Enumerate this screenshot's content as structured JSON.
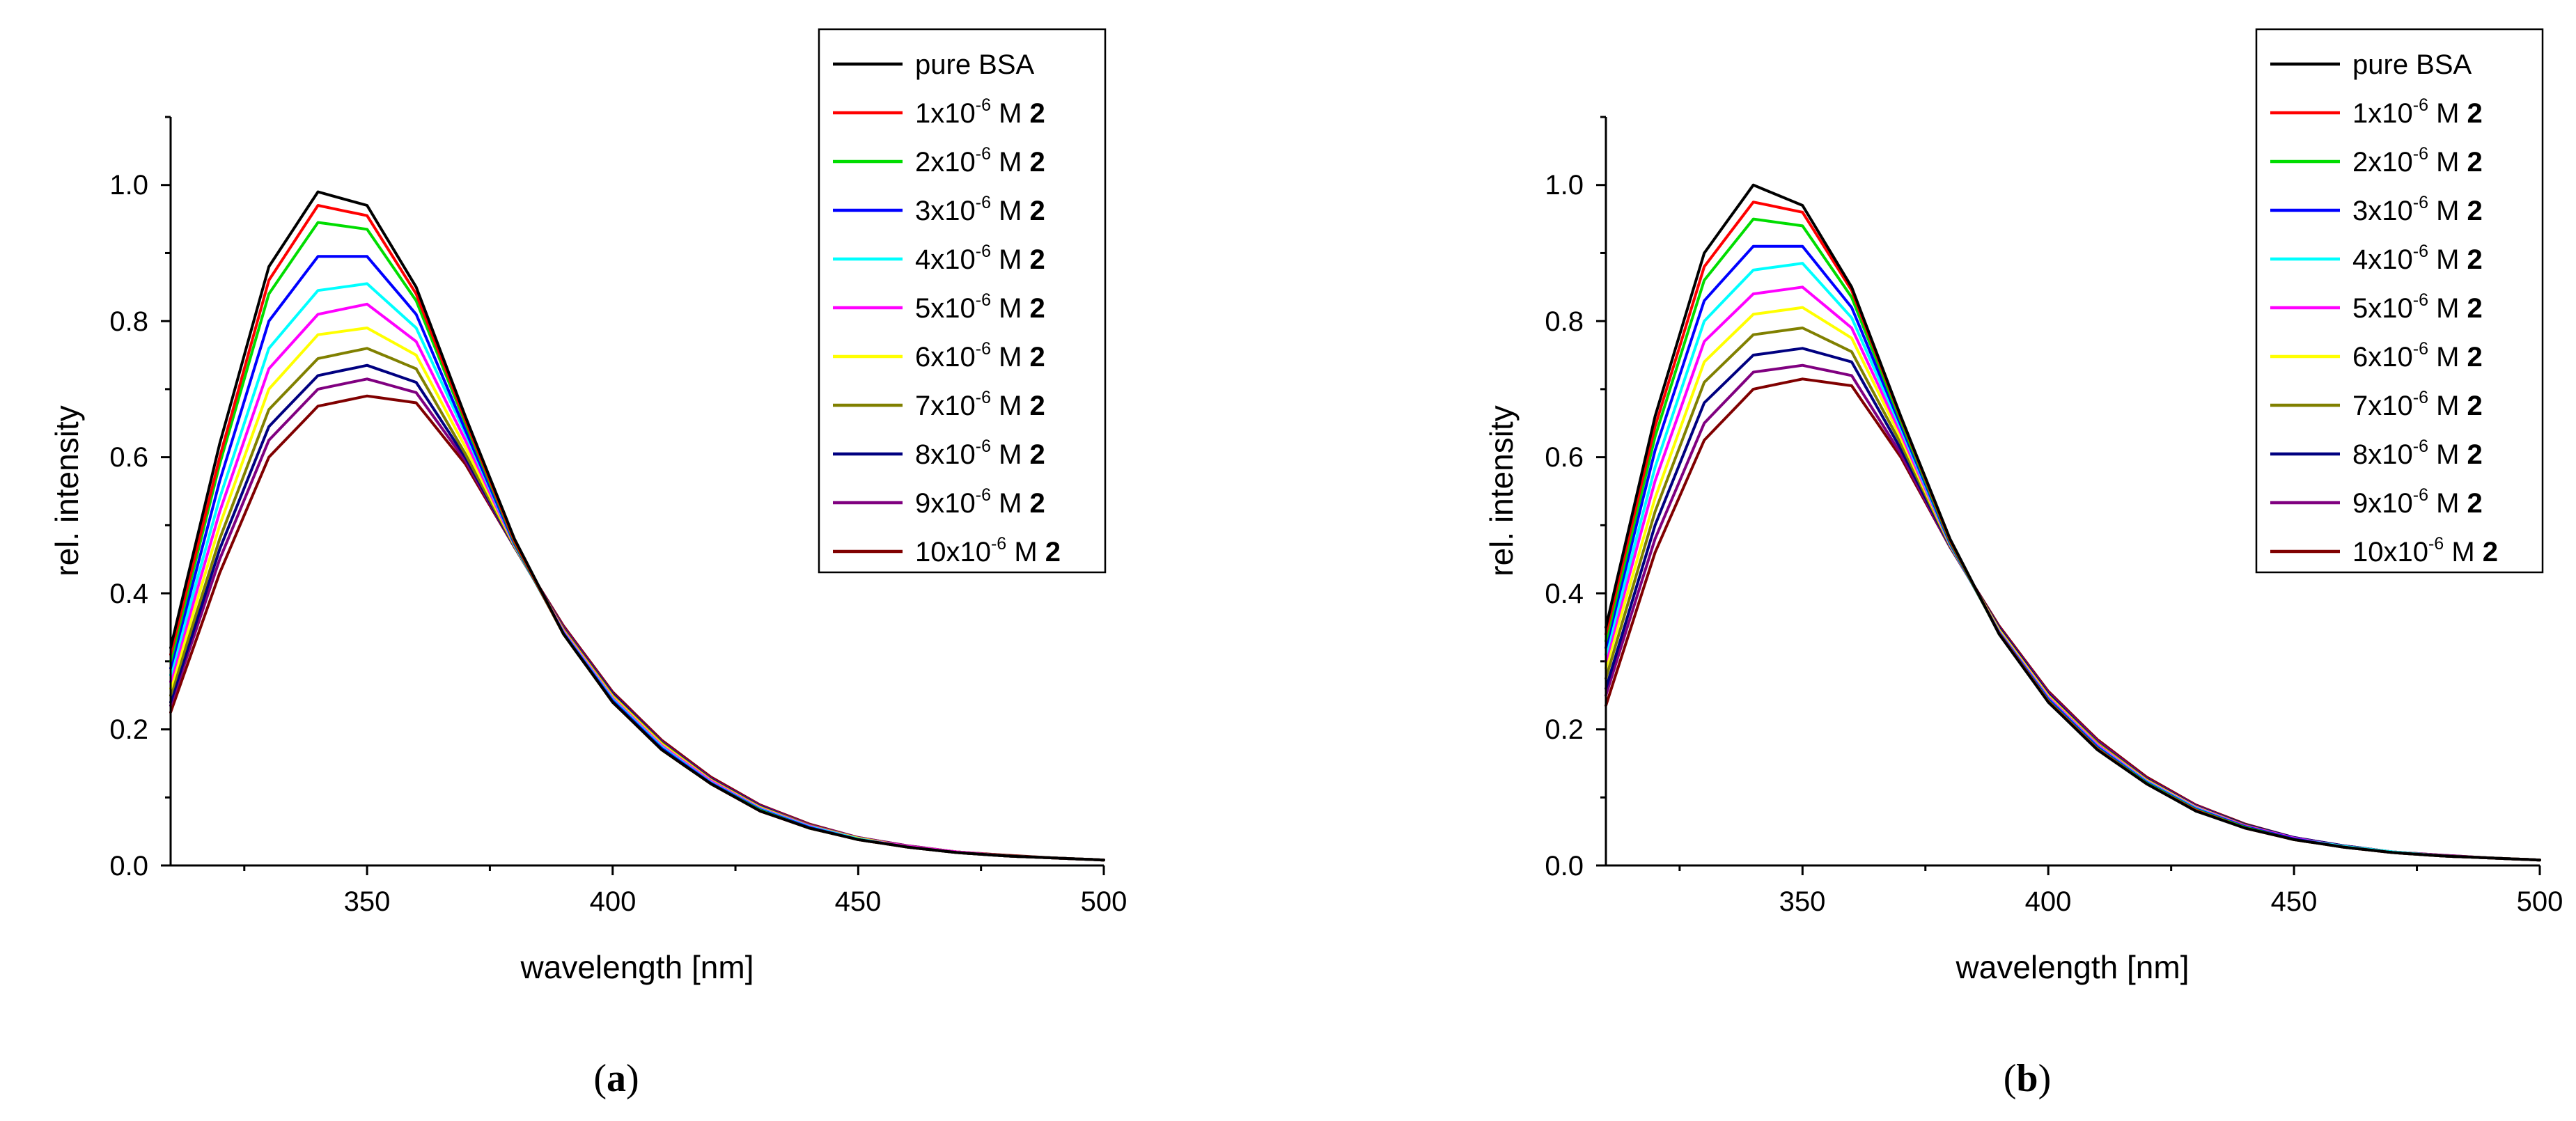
{
  "panels": [
    {
      "id": "a",
      "label_parts": [
        "(",
        "a",
        ")"
      ],
      "chart_data": {
        "type": "line",
        "xlabel": "wavelength [nm]",
        "ylabel": "rel. intensity",
        "xlim": [
          310,
          500
        ],
        "ylim": [
          0,
          1.1
        ],
        "xticks": [
          350,
          400,
          450,
          500
        ],
        "yticks": [
          0.0,
          0.2,
          0.4,
          0.6,
          0.8,
          1.0
        ],
        "xtick_labels": [
          "350",
          "400",
          "450",
          "500"
        ],
        "ytick_labels": [
          "0.0",
          "0.2",
          "0.4",
          "0.6",
          "0.8",
          "1.0"
        ],
        "x": [
          310,
          320,
          330,
          340,
          350,
          360,
          370,
          380,
          390,
          400,
          410,
          420,
          430,
          440,
          450,
          460,
          470,
          480,
          490,
          500
        ],
        "series": [
          {
            "prefix": "",
            "mantissa": "pure BSA",
            "exponent": "",
            "unit": "",
            "compound": "",
            "color": "#000000",
            "values": [
              0.32,
              0.62,
              0.88,
              0.99,
              0.97,
              0.85,
              0.66,
              0.48,
              0.34,
              0.24,
              0.17,
              0.12,
              0.08,
              0.055,
              0.038,
              0.027,
              0.019,
              0.014,
              0.011,
              0.008
            ]
          },
          {
            "prefix": "1x10",
            "mantissa": "",
            "exponent": "-6",
            "unit": " M ",
            "compound": "2",
            "color": "#ff0000",
            "values": [
              0.31,
              0.6,
              0.86,
              0.97,
              0.955,
              0.84,
              0.655,
              0.477,
              0.34,
              0.24,
              0.17,
              0.12,
              0.08,
              0.055,
              0.038,
              0.027,
              0.019,
              0.014,
              0.011,
              0.008
            ]
          },
          {
            "prefix": "2x10",
            "mantissa": "",
            "exponent": "-6",
            "unit": " M ",
            "compound": "2",
            "color": "#00dd00",
            "values": [
              0.3,
              0.59,
              0.84,
              0.945,
              0.935,
              0.83,
              0.65,
              0.475,
              0.34,
              0.24,
              0.17,
              0.12,
              0.081,
              0.055,
              0.038,
              0.027,
              0.019,
              0.014,
              0.011,
              0.008
            ]
          },
          {
            "prefix": "3x10",
            "mantissa": "",
            "exponent": "-6",
            "unit": " M ",
            "compound": "2",
            "color": "#0000ff",
            "values": [
              0.29,
              0.565,
              0.8,
              0.895,
              0.895,
              0.81,
              0.64,
              0.473,
              0.341,
              0.242,
              0.172,
              0.121,
              0.082,
              0.056,
              0.038,
              0.027,
              0.019,
              0.014,
              0.011,
              0.008
            ]
          },
          {
            "prefix": "4x10",
            "mantissa": "",
            "exponent": "-6",
            "unit": " M ",
            "compound": "2",
            "color": "#00ffff",
            "values": [
              0.28,
              0.54,
              0.76,
              0.845,
              0.855,
              0.79,
              0.635,
              0.472,
              0.342,
              0.244,
              0.174,
              0.122,
              0.083,
              0.057,
              0.039,
              0.027,
              0.019,
              0.014,
              0.011,
              0.008
            ]
          },
          {
            "prefix": "5x10",
            "mantissa": "",
            "exponent": "-6",
            "unit": " M ",
            "compound": "2",
            "color": "#ff00ff",
            "values": [
              0.27,
              0.52,
              0.73,
              0.81,
              0.825,
              0.77,
              0.625,
              0.471,
              0.344,
              0.246,
              0.176,
              0.124,
              0.084,
              0.058,
              0.039,
              0.028,
              0.02,
              0.014,
              0.011,
              0.008
            ]
          },
          {
            "prefix": "6x10",
            "mantissa": "",
            "exponent": "-6",
            "unit": " M ",
            "compound": "2",
            "color": "#ffff00",
            "values": [
              0.26,
              0.5,
              0.7,
              0.78,
              0.79,
              0.75,
              0.615,
              0.47,
              0.345,
              0.248,
              0.178,
              0.125,
              0.085,
              0.058,
              0.04,
              0.028,
              0.02,
              0.014,
              0.011,
              0.008
            ]
          },
          {
            "prefix": "7x10",
            "mantissa": "",
            "exponent": "-6",
            "unit": " M ",
            "compound": "2",
            "color": "#808000",
            "values": [
              0.25,
              0.48,
              0.67,
              0.745,
              0.76,
              0.73,
              0.605,
              0.469,
              0.347,
              0.25,
              0.18,
              0.126,
              0.086,
              0.059,
              0.04,
              0.028,
              0.02,
              0.014,
              0.011,
              0.008
            ]
          },
          {
            "prefix": "8x10",
            "mantissa": "",
            "exponent": "-6",
            "unit": " M ",
            "compound": "2",
            "color": "#000080",
            "values": [
              0.24,
              0.465,
              0.645,
              0.72,
              0.735,
              0.71,
              0.6,
              0.468,
              0.348,
              0.252,
              0.181,
              0.127,
              0.087,
              0.059,
              0.04,
              0.028,
              0.02,
              0.014,
              0.011,
              0.008
            ]
          },
          {
            "prefix": "9x10",
            "mantissa": "",
            "exponent": "-6",
            "unit": " M ",
            "compound": "2",
            "color": "#800080",
            "values": [
              0.235,
              0.45,
              0.625,
              0.7,
              0.715,
              0.695,
              0.595,
              0.468,
              0.35,
              0.253,
              0.182,
              0.128,
              0.088,
              0.06,
              0.041,
              0.029,
              0.02,
              0.014,
              0.011,
              0.008
            ]
          },
          {
            "prefix": "10x10",
            "mantissa": "",
            "exponent": "-6",
            "unit": " M ",
            "compound": "2",
            "color": "#800000",
            "values": [
              0.225,
              0.43,
              0.6,
              0.675,
              0.69,
              0.68,
              0.59,
              0.468,
              0.352,
              0.255,
              0.184,
              0.13,
              0.089,
              0.061,
              0.041,
              0.029,
              0.02,
              0.015,
              0.011,
              0.008
            ]
          }
        ]
      }
    },
    {
      "id": "b",
      "label_parts": [
        "(",
        "b",
        ")"
      ],
      "chart_data": {
        "type": "line",
        "xlabel": "wavelength [nm]",
        "ylabel": "rel. intensity",
        "xlim": [
          310,
          500
        ],
        "ylim": [
          0,
          1.1
        ],
        "xticks": [
          350,
          400,
          450,
          500
        ],
        "yticks": [
          0.0,
          0.2,
          0.4,
          0.6,
          0.8,
          1.0
        ],
        "xtick_labels": [
          "350",
          "400",
          "450",
          "500"
        ],
        "ytick_labels": [
          "0.0",
          "0.2",
          "0.4",
          "0.6",
          "0.8",
          "1.0"
        ],
        "x": [
          310,
          320,
          330,
          340,
          350,
          360,
          370,
          380,
          390,
          400,
          410,
          420,
          430,
          440,
          450,
          460,
          470,
          480,
          490,
          500
        ],
        "series": [
          {
            "prefix": "",
            "mantissa": "pure BSA",
            "exponent": "",
            "unit": "",
            "compound": "",
            "color": "#000000",
            "values": [
              0.35,
              0.66,
              0.9,
              1.0,
              0.97,
              0.85,
              0.66,
              0.48,
              0.34,
              0.24,
              0.17,
              0.12,
              0.08,
              0.055,
              0.038,
              0.027,
              0.019,
              0.014,
              0.011,
              0.008
            ]
          },
          {
            "prefix": "1x10",
            "mantissa": "",
            "exponent": "-6",
            "unit": " M ",
            "compound": "2",
            "color": "#ff0000",
            "values": [
              0.34,
              0.645,
              0.88,
              0.975,
              0.96,
              0.845,
              0.658,
              0.478,
              0.341,
              0.241,
              0.171,
              0.12,
              0.081,
              0.055,
              0.038,
              0.027,
              0.019,
              0.014,
              0.011,
              0.008
            ]
          },
          {
            "prefix": "2x10",
            "mantissa": "",
            "exponent": "-6",
            "unit": " M ",
            "compound": "2",
            "color": "#00dd00",
            "values": [
              0.33,
              0.63,
              0.86,
              0.95,
              0.94,
              0.835,
              0.653,
              0.476,
              0.341,
              0.242,
              0.172,
              0.121,
              0.082,
              0.056,
              0.038,
              0.027,
              0.019,
              0.014,
              0.011,
              0.008
            ]
          },
          {
            "prefix": "3x10",
            "mantissa": "",
            "exponent": "-6",
            "unit": " M ",
            "compound": "2",
            "color": "#0000ff",
            "values": [
              0.32,
              0.61,
              0.83,
              0.91,
              0.91,
              0.82,
              0.647,
              0.474,
              0.342,
              0.244,
              0.174,
              0.122,
              0.083,
              0.057,
              0.039,
              0.027,
              0.019,
              0.014,
              0.011,
              0.008
            ]
          },
          {
            "prefix": "4x10",
            "mantissa": "",
            "exponent": "-6",
            "unit": " M ",
            "compound": "2",
            "color": "#00ffff",
            "values": [
              0.31,
              0.585,
              0.8,
              0.875,
              0.885,
              0.805,
              0.642,
              0.473,
              0.343,
              0.245,
              0.175,
              0.123,
              0.084,
              0.057,
              0.039,
              0.028,
              0.02,
              0.014,
              0.011,
              0.008
            ]
          },
          {
            "prefix": "5x10",
            "mantissa": "",
            "exponent": "-6",
            "unit": " M ",
            "compound": "2",
            "color": "#ff00ff",
            "values": [
              0.3,
              0.565,
              0.77,
              0.84,
              0.85,
              0.79,
              0.635,
              0.472,
              0.344,
              0.247,
              0.177,
              0.124,
              0.085,
              0.058,
              0.04,
              0.028,
              0.02,
              0.014,
              0.011,
              0.008
            ]
          },
          {
            "prefix": "6x10",
            "mantissa": "",
            "exponent": "-6",
            "unit": " M ",
            "compound": "2",
            "color": "#ffff00",
            "values": [
              0.29,
              0.54,
              0.74,
              0.81,
              0.82,
              0.775,
              0.628,
              0.471,
              0.346,
              0.249,
              0.178,
              0.125,
              0.086,
              0.058,
              0.04,
              0.028,
              0.02,
              0.014,
              0.011,
              0.008
            ]
          },
          {
            "prefix": "7x10",
            "mantissa": "",
            "exponent": "-6",
            "unit": " M ",
            "compound": "2",
            "color": "#808000",
            "values": [
              0.275,
              0.52,
              0.71,
              0.78,
              0.79,
              0.755,
              0.62,
              0.47,
              0.347,
              0.25,
              0.18,
              0.126,
              0.086,
              0.059,
              0.04,
              0.028,
              0.02,
              0.014,
              0.011,
              0.008
            ]
          },
          {
            "prefix": "8x10",
            "mantissa": "",
            "exponent": "-6",
            "unit": " M ",
            "compound": "2",
            "color": "#000080",
            "values": [
              0.26,
              0.5,
              0.68,
              0.75,
              0.76,
              0.74,
              0.612,
              0.469,
              0.349,
              0.252,
              0.181,
              0.127,
              0.087,
              0.06,
              0.041,
              0.029,
              0.02,
              0.014,
              0.011,
              0.008
            ]
          },
          {
            "prefix": "9x10",
            "mantissa": "",
            "exponent": "-6",
            "unit": " M ",
            "compound": "2",
            "color": "#800080",
            "values": [
              0.25,
              0.48,
              0.65,
              0.725,
              0.735,
              0.72,
              0.605,
              0.468,
              0.35,
              0.254,
              0.183,
              0.128,
              0.088,
              0.06,
              0.041,
              0.029,
              0.02,
              0.015,
              0.011,
              0.008
            ]
          },
          {
            "prefix": "10x10",
            "mantissa": "",
            "exponent": "-6",
            "unit": " M ",
            "compound": "2",
            "color": "#800000",
            "values": [
              0.235,
              0.46,
              0.625,
              0.7,
              0.715,
              0.705,
              0.6,
              0.468,
              0.352,
              0.256,
              0.185,
              0.13,
              0.089,
              0.061,
              0.041,
              0.029,
              0.02,
              0.015,
              0.011,
              0.008
            ]
          }
        ]
      }
    }
  ]
}
